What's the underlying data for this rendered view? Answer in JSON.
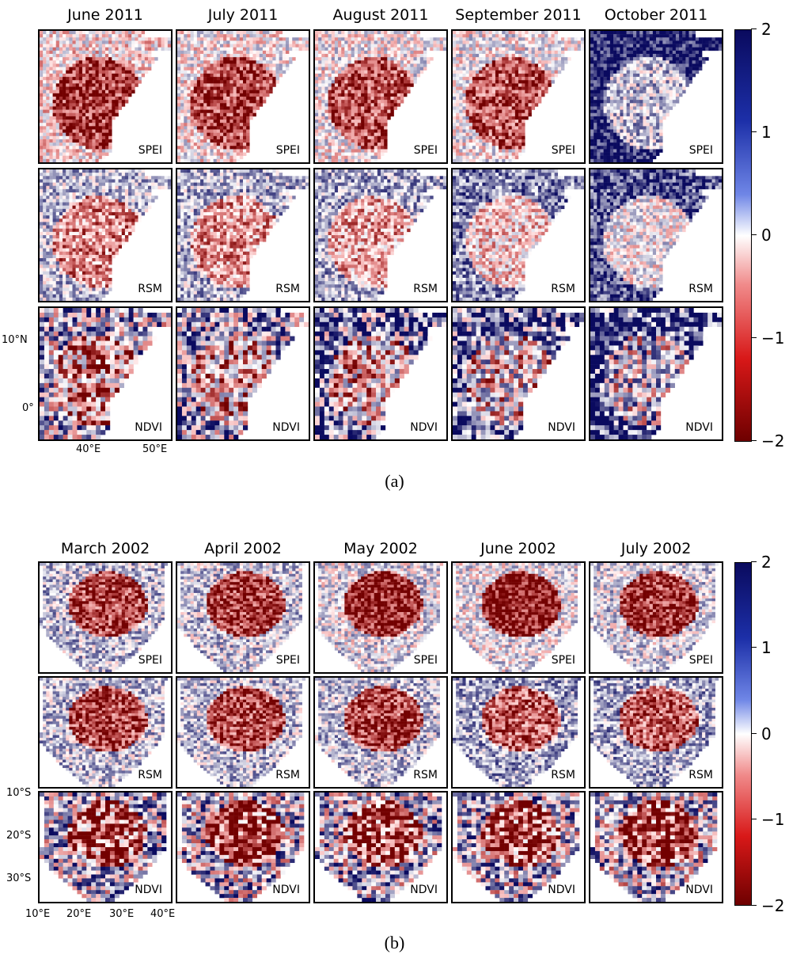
{
  "figures": [
    {
      "caption": "(a)",
      "months": [
        "June 2011",
        "July 2011",
        "August 2011",
        "September 2011",
        "October 2011"
      ],
      "rows": [
        "SPEI",
        "RSM",
        "NDVI"
      ],
      "lat_labels": [
        "10°N",
        "0°"
      ],
      "lon_labels": [
        "40°E",
        "50°E"
      ],
      "colorbar_ticks": [
        "2",
        "1",
        "0",
        "−1",
        "−2"
      ],
      "region": "east"
    },
    {
      "caption": "(b)",
      "months": [
        "March 2002",
        "April 2002",
        "May 2002",
        "June 2002",
        "July 2002"
      ],
      "rows": [
        "SPEI",
        "RSM",
        "NDVI"
      ],
      "lat_labels": [
        "10°S",
        "20°S",
        "30°S"
      ],
      "lon_labels": [
        "10°E",
        "20°E",
        "30°E",
        "40°E"
      ],
      "colorbar_ticks": [
        "2",
        "1",
        "0",
        "−1",
        "−2"
      ],
      "region": "south"
    }
  ],
  "colorbar": {
    "min": -2,
    "max": 2,
    "colormap": "seismic_r",
    "colors": [
      "#0a0a5e",
      "#1c2fa8",
      "#ffffff",
      "#d81818",
      "#6e0000"
    ]
  }
}
